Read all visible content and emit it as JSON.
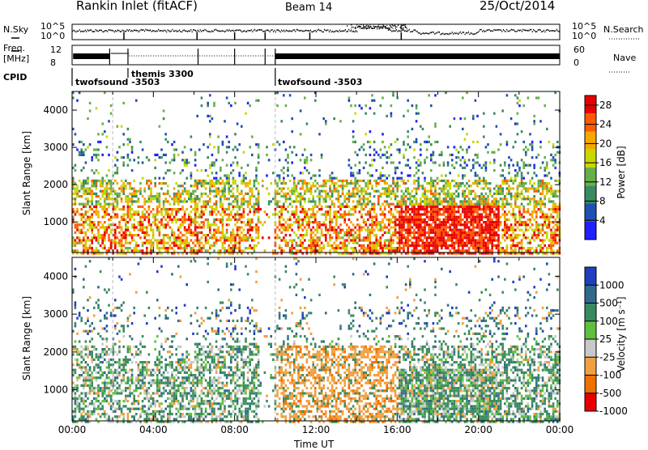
{
  "header": {
    "title": "Rankin Inlet (fitACF)",
    "beam": "Beam 14",
    "date": "25/Oct/2014"
  },
  "top_panels": {
    "nsky_label": "N.Sky",
    "nsearch_label": "N.Search",
    "freq_label": "Freq.",
    "freq_unit": "[MHz]",
    "nave_label": "Nave",
    "cpid_label": "CPID",
    "noise_left_ticks": [
      "10^5",
      "10^0"
    ],
    "noise_right_ticks": [
      "10^5",
      "10^0"
    ],
    "freq_ticks": [
      "12",
      "8"
    ],
    "nave_ticks": [
      "60",
      "0"
    ],
    "cpid_entries": [
      {
        "name": "twofsound -3503",
        "start_hour": 0.0
      },
      {
        "name": "themis 3300",
        "start_hour": 2.7
      },
      {
        "name": "twofsound -3503",
        "start_hour": 10.0
      }
    ]
  },
  "chart_data": [
    {
      "type": "heatmap",
      "title": "Power",
      "xlabel": "",
      "ylabel": "Slant Range [km]",
      "xlim": [
        0,
        24
      ],
      "ylim": [
        180,
        4500
      ],
      "yticks": [
        "1000",
        "2000",
        "3000",
        "4000"
      ],
      "colorbar_label": "Power [dB]",
      "colorbar_ticks": [
        "4",
        "8",
        "12",
        "16",
        "20",
        "24",
        "28"
      ],
      "colorbar_range": [
        0,
        30
      ],
      "colors": [
        "#1f1fff",
        "#2050b0",
        "#3a8a60",
        "#66b04a",
        "#c8d800",
        "#f5a800",
        "#ff5a00",
        "#e80000"
      ]
    },
    {
      "type": "heatmap",
      "title": "Velocity",
      "xlabel": "Time UT",
      "ylabel": "Slant Range [km]",
      "xlim": [
        0,
        24
      ],
      "ylim": [
        180,
        4500
      ],
      "xticks": [
        "00:00",
        "04:00",
        "08:00",
        "12:00",
        "16:00",
        "20:00",
        "00:00"
      ],
      "yticks": [
        "1000",
        "2000",
        "3000",
        "4000"
      ],
      "colorbar_label": "Velocity [m s⁻¹]",
      "colorbar_ticks": [
        "1000",
        "500",
        "100",
        "25",
        "-25",
        "-100",
        "-500",
        "-1000"
      ],
      "colors": [
        "#1f3fc0",
        "#2f6a8a",
        "#3a8a60",
        "#5fc040",
        "#c8c8c8",
        "#f0a040",
        "#f07000",
        "#e80000"
      ]
    }
  ]
}
